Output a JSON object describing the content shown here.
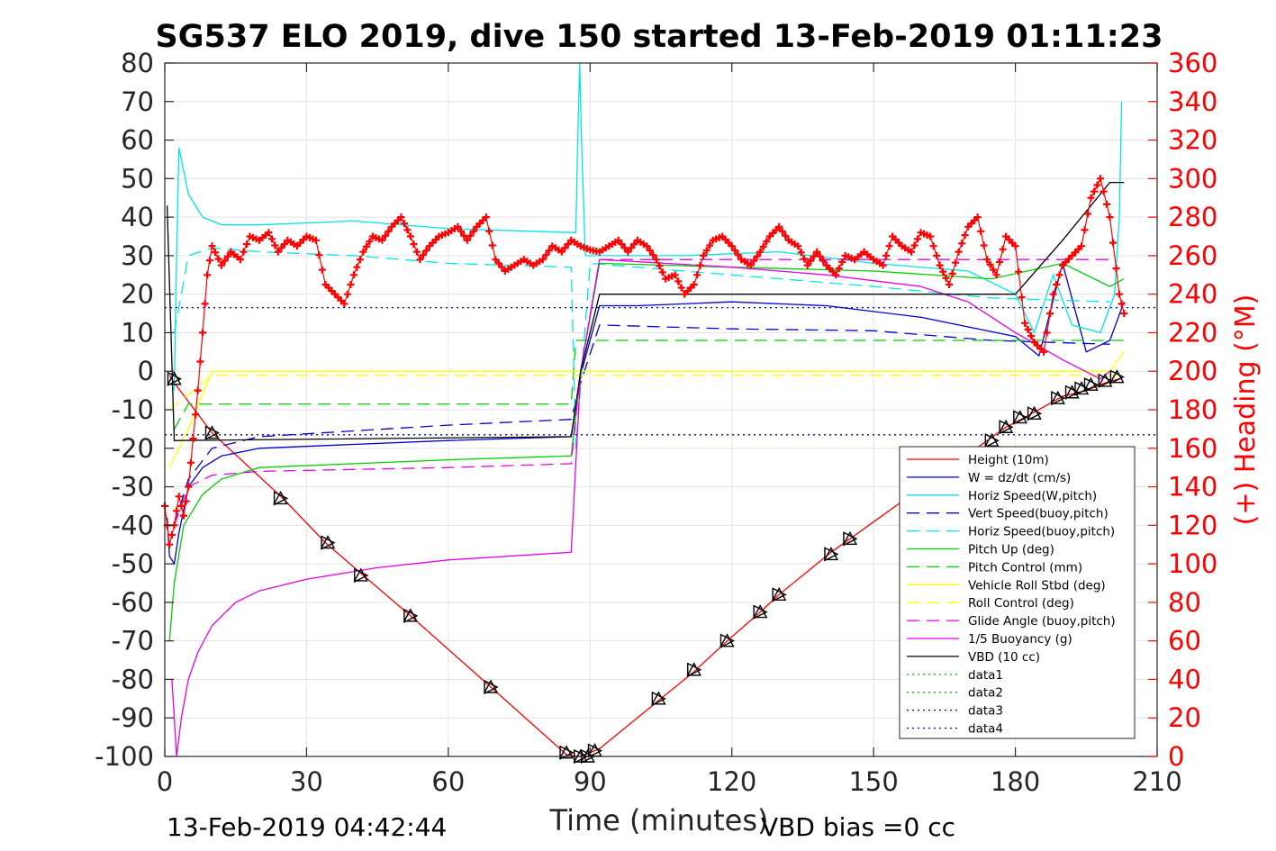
{
  "chart_data": {
    "type": "line",
    "title": "SG537 ELO 2019, dive 150 started 13-Feb-2019 01:11:23",
    "xlabel": "Time (minutes)",
    "ylabel_right": "(+) Heading (°M)",
    "xlim": [
      0,
      210
    ],
    "ylim_left": [
      -100,
      80
    ],
    "ylim_right": [
      0,
      360
    ],
    "x_ticks": [
      0,
      30,
      60,
      90,
      120,
      150,
      180,
      210
    ],
    "y_left_ticks": [
      -100,
      -90,
      -80,
      -70,
      -60,
      -50,
      -40,
      -30,
      -20,
      -10,
      0,
      10,
      20,
      30,
      40,
      50,
      60,
      70,
      80
    ],
    "y_right_ticks": [
      0,
      20,
      40,
      60,
      80,
      100,
      120,
      140,
      160,
      180,
      200,
      220,
      240,
      260,
      280,
      300,
      320,
      340,
      360
    ],
    "grid": true,
    "legend_position": "lower-right",
    "footer_left": "13-Feb-2019 04:42:44",
    "footer_right": "VBD bias =0 cc",
    "series": [
      {
        "name": "Height (10m)",
        "color": "#ff0000",
        "style": "solid",
        "x": [
          1,
          2,
          10,
          25,
          34,
          42,
          52,
          69,
          85,
          87.5,
          89,
          92,
          105,
          112,
          119,
          126,
          130,
          141,
          145,
          178,
          182,
          190,
          195,
          199,
          202
        ],
        "y": [
          -1,
          -3,
          -16,
          -33,
          -44.5,
          -53,
          -63.5,
          -82,
          -99.5,
          -100,
          -99.5,
          -98,
          -85,
          -78,
          -70,
          -62.5,
          -58,
          -47,
          -43.5,
          -14.5,
          -12,
          -6.5,
          -5,
          -3,
          -2
        ]
      },
      {
        "name": "W = dz/dt (cm/s)",
        "color": "#0000cc",
        "style": "solid",
        "x": [
          0.5,
          1,
          2,
          3,
          5,
          8,
          12,
          20,
          40,
          60,
          86,
          88,
          92,
          100,
          120,
          140,
          160,
          180,
          185,
          190,
          195,
          200,
          203
        ],
        "y": [
          -38,
          -48,
          -50,
          -42,
          -30,
          -25,
          -22,
          -20,
          -19,
          -18,
          -17,
          -1,
          17,
          17,
          18,
          17,
          14,
          9,
          4,
          28,
          5,
          8,
          18
        ]
      },
      {
        "name": "Horiz Speed(W,pitch)",
        "color": "#00e5e5",
        "style": "solid",
        "x": [
          2,
          2.5,
          3,
          5,
          8,
          12,
          20,
          40,
          60,
          86,
          87,
          87.3,
          87.8,
          88.2,
          89,
          92,
          110,
          130,
          150,
          170,
          180,
          184,
          188,
          192,
          198,
          201,
          202,
          202.5
        ],
        "y": [
          -5,
          30,
          58,
          46,
          40,
          38,
          38,
          39,
          37,
          36,
          36,
          55,
          80,
          60,
          30,
          30,
          30,
          31,
          28,
          26,
          20,
          10,
          25,
          12,
          10,
          20,
          40,
          70
        ]
      },
      {
        "name": "Vert Speed(buoy,pitch)",
        "color": "#0000cc",
        "style": "dashed",
        "x": [
          2,
          5,
          10,
          20,
          40,
          60,
          86,
          88,
          92,
          120,
          150,
          175,
          200
        ],
        "y": [
          -40,
          -28,
          -20,
          -17,
          -15.5,
          -14,
          -12.5,
          -3,
          12,
          11,
          10.5,
          8,
          7
        ]
      },
      {
        "name": "Horiz Speed(buoy,pitch)",
        "color": "#00e5e5",
        "style": "dashed",
        "x": [
          2,
          5,
          10,
          20,
          40,
          60,
          86,
          87,
          90,
          120,
          150,
          175,
          200
        ],
        "y": [
          10,
          30,
          32,
          31,
          30,
          28,
          27,
          -20,
          28,
          25,
          22,
          19,
          18
        ]
      },
      {
        "name": "Pitch Up (deg)",
        "color": "#00cc00",
        "style": "solid",
        "x": [
          1,
          2,
          4,
          8,
          12,
          20,
          40,
          60,
          86,
          88,
          92,
          120,
          150,
          175,
          190,
          200,
          203
        ],
        "y": [
          -70,
          -55,
          -40,
          -32,
          -28,
          -25,
          -24,
          -23,
          -22,
          0,
          28,
          27,
          26,
          24,
          28,
          22,
          24
        ]
      },
      {
        "name": "Pitch Control (mm)",
        "color": "#00cc00",
        "style": "dashed",
        "x": [
          2,
          5,
          86,
          87,
          92,
          203
        ],
        "y": [
          -15,
          -8.5,
          -8.5,
          8,
          8,
          8
        ]
      },
      {
        "name": "Vehicle Roll Stbd (deg)",
        "color": "#ffff00",
        "style": "solid",
        "x": [
          1,
          5,
          10,
          30,
          60,
          86,
          90,
          120,
          150,
          180,
          200,
          203
        ],
        "y": [
          -25,
          -15,
          0,
          0,
          0,
          0,
          0,
          0,
          0,
          0,
          0,
          5
        ]
      },
      {
        "name": "Roll Control (deg)",
        "color": "#ffff00",
        "style": "dashed",
        "x": [
          1,
          10,
          86,
          87,
          203
        ],
        "y": [
          -10,
          -1,
          -1,
          -1,
          -1
        ]
      },
      {
        "name": "Glide Angle (buoy,pitch)",
        "color": "#e600e6",
        "style": "dashed",
        "x": [
          2,
          5,
          10,
          20,
          40,
          60,
          86,
          88,
          92,
          120,
          150,
          175,
          200
        ],
        "y": [
          -40,
          -30,
          -27,
          -26,
          -25.5,
          -25,
          -24,
          0,
          29,
          29,
          29,
          29,
          29
        ]
      },
      {
        "name": "1/5 Buoyancy (g)",
        "color": "#e600e6",
        "style": "solid",
        "x": [
          1.5,
          2.5,
          3.5,
          5,
          7,
          10,
          15,
          20,
          30,
          45,
          60,
          86,
          88,
          92,
          120,
          140,
          160,
          170,
          180,
          190,
          198,
          200
        ],
        "y": [
          -80,
          -100,
          -90,
          -80,
          -73,
          -66,
          -60,
          -57,
          -54,
          -51,
          -49,
          -47,
          0,
          29,
          27,
          25,
          22,
          18,
          10,
          3,
          -2,
          0
        ]
      },
      {
        "name": "VBD (10 cc)",
        "color": "#000000",
        "style": "solid",
        "x": [
          0.5,
          2,
          86,
          88,
          92,
          180,
          190,
          200,
          203
        ],
        "y": [
          43,
          -18,
          -17,
          0,
          20,
          20,
          34,
          49,
          49
        ]
      },
      {
        "name": "data1",
        "color": "#00cc00",
        "style": "dotted",
        "x": [],
        "y": []
      },
      {
        "name": "data2",
        "color": "#00cc00",
        "style": "dotted",
        "x": [],
        "y": []
      },
      {
        "name": "data3",
        "color": "#0000cc",
        "style": "dotted",
        "x": [
          0,
          210
        ],
        "y": [
          16.5,
          16.5
        ]
      },
      {
        "name": "data4",
        "color": "#0000cc",
        "style": "dotted",
        "x": [
          0,
          210
        ],
        "y": [
          -16.5,
          -16.5
        ]
      }
    ],
    "heading_series": {
      "name": "(+) Heading (°M)",
      "axis": "right",
      "color": "#ff0000",
      "x": [
        0,
        1,
        2,
        3,
        4,
        5,
        6,
        7,
        8,
        9,
        10,
        12,
        14,
        16,
        18,
        20,
        22,
        24,
        26,
        28,
        30,
        32,
        34,
        36,
        38,
        40,
        42,
        44,
        46,
        48,
        50,
        52,
        54,
        56,
        58,
        60,
        62,
        64,
        66,
        68,
        70,
        72,
        74,
        76,
        78,
        80,
        82,
        84,
        86,
        88,
        90,
        92,
        94,
        96,
        98,
        100,
        102,
        104,
        106,
        108,
        110,
        112,
        114,
        116,
        118,
        120,
        122,
        124,
        126,
        128,
        130,
        132,
        134,
        136,
        138,
        140,
        142,
        144,
        146,
        148,
        150,
        152,
        154,
        156,
        158,
        160,
        162,
        164,
        166,
        168,
        170,
        172,
        174,
        176,
        178,
        180,
        182,
        184,
        186,
        188,
        190,
        192,
        194,
        196,
        198,
        200,
        202,
        203
      ],
      "y": [
        130,
        110,
        120,
        135,
        125,
        140,
        165,
        190,
        220,
        250,
        265,
        255,
        262,
        258,
        270,
        268,
        272,
        262,
        268,
        265,
        270,
        268,
        245,
        240,
        235,
        250,
        262,
        270,
        268,
        275,
        280,
        270,
        258,
        265,
        270,
        272,
        275,
        268,
        275,
        280,
        258,
        252,
        255,
        258,
        255,
        258,
        265,
        262,
        268,
        265,
        263,
        262,
        265,
        268,
        262,
        268,
        265,
        258,
        248,
        250,
        240,
        245,
        260,
        268,
        270,
        265,
        258,
        255,
        262,
        270,
        275,
        268,
        265,
        255,
        262,
        255,
        250,
        260,
        258,
        262,
        258,
        255,
        270,
        265,
        262,
        272,
        270,
        255,
        245,
        262,
        275,
        280,
        258,
        250,
        270,
        265,
        225,
        215,
        210,
        240,
        255,
        260,
        265,
        290,
        300,
        280,
        240,
        230
      ]
    },
    "markers": {
      "series": "Height (10m)",
      "symbol": "triangles",
      "x": [
        2,
        10,
        24.5,
        34.5,
        41.5,
        52,
        69,
        85,
        88,
        89.5,
        91,
        104.5,
        112,
        119,
        126,
        130,
        141,
        145,
        175,
        178,
        181,
        184,
        189,
        192,
        194,
        196,
        199,
        201.5
      ],
      "y": [
        -2,
        -16,
        -33,
        -44.5,
        -53,
        -63.5,
        -82,
        -99,
        -100,
        -100,
        -98.5,
        -85,
        -77.5,
        -70,
        -62.5,
        -58,
        -47.5,
        -43.5,
        -18,
        -14.5,
        -12,
        -11,
        -7,
        -5.5,
        -4.5,
        -3.5,
        -2.5,
        -1.5
      ]
    }
  }
}
